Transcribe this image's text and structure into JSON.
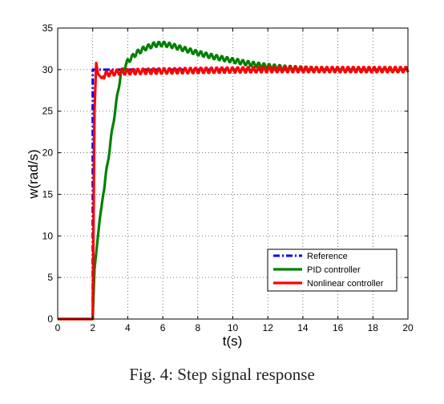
{
  "caption": "Fig. 4: Step signal response",
  "chart_data": {
    "type": "line",
    "xlabel": "t(s)",
    "ylabel": "w(rad/s)",
    "xlim": [
      0,
      20
    ],
    "ylim": [
      0,
      35
    ],
    "xticks": [
      0,
      2,
      4,
      6,
      8,
      10,
      12,
      14,
      16,
      18,
      20
    ],
    "yticks": [
      0,
      5,
      10,
      15,
      20,
      25,
      30,
      35
    ],
    "grid": true,
    "legend_position": "bottom-right",
    "series": [
      {
        "name": "Reference",
        "color": "#0000ff",
        "style": "dash-dot",
        "points": [
          [
            0,
            0
          ],
          [
            2,
            0
          ],
          [
            2,
            30
          ],
          [
            20,
            30
          ]
        ]
      },
      {
        "name": "PID controller",
        "color": "#008000",
        "style": "solid",
        "oscillation_amplitude": 0.3,
        "points": [
          [
            0,
            0
          ],
          [
            2,
            0
          ],
          [
            2.1,
            6
          ],
          [
            2.4,
            12
          ],
          [
            2.8,
            18
          ],
          [
            3.2,
            24
          ],
          [
            3.6,
            29.5
          ],
          [
            4.0,
            31
          ],
          [
            4.5,
            32
          ],
          [
            5.0,
            32.6
          ],
          [
            5.5,
            33.0
          ],
          [
            6.0,
            33.1
          ],
          [
            6.5,
            32.9
          ],
          [
            7.0,
            32.6
          ],
          [
            8.0,
            32.0
          ],
          [
            9.0,
            31.5
          ],
          [
            10.0,
            31.1
          ],
          [
            11.0,
            30.7
          ],
          [
            12.0,
            30.4
          ],
          [
            13.0,
            30.2
          ],
          [
            14.0,
            30.1
          ],
          [
            15.0,
            30.0
          ],
          [
            20.0,
            30.0
          ]
        ]
      },
      {
        "name": "Nonlinear controller",
        "color": "#ff0000",
        "style": "solid",
        "oscillation_amplitude": 0.35,
        "points": [
          [
            0,
            0
          ],
          [
            2,
            0
          ],
          [
            2.1,
            25
          ],
          [
            2.2,
            30.8
          ],
          [
            2.3,
            29.5
          ],
          [
            2.5,
            29.0
          ],
          [
            2.8,
            29.5
          ],
          [
            3.5,
            29.7
          ],
          [
            5.0,
            29.8
          ],
          [
            8.0,
            29.9
          ],
          [
            12.0,
            30.0
          ],
          [
            20.0,
            30.0
          ]
        ]
      }
    ]
  }
}
